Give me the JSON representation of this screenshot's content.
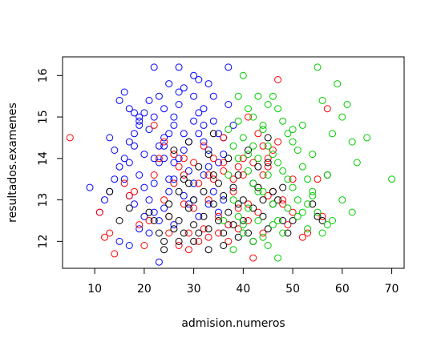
{
  "chart_data": {
    "type": "scatter",
    "title": "",
    "xlabel": "admision.numeros",
    "ylabel": "resultados.examenes",
    "xlim": [
      3.5,
      72.5
    ],
    "ylim": [
      11.35,
      16.45
    ],
    "xticks": [
      10,
      20,
      30,
      40,
      50,
      60,
      70
    ],
    "yticks": [
      12,
      13,
      14,
      15,
      16
    ],
    "grid": false,
    "legend": "none",
    "series": [
      {
        "color": "#0000FF",
        "points": [
          [
            15,
            15.4
          ],
          [
            16,
            15.6
          ],
          [
            17,
            15.2
          ],
          [
            19,
            15.0
          ],
          [
            22,
            16.2
          ],
          [
            27,
            16.2
          ],
          [
            30,
            16.0
          ],
          [
            31,
            15.9
          ],
          [
            33,
            15.8
          ],
          [
            37,
            16.2
          ],
          [
            25,
            15.8
          ],
          [
            23,
            15.5
          ],
          [
            21,
            15.4
          ],
          [
            20,
            15.1
          ],
          [
            19,
            14.8
          ],
          [
            18,
            14.6
          ],
          [
            17,
            14.4
          ],
          [
            16,
            14.0
          ],
          [
            15,
            13.8
          ],
          [
            14,
            13.5
          ],
          [
            13,
            13.2
          ],
          [
            12,
            13.0
          ],
          [
            11,
            12.7
          ],
          [
            9,
            13.3
          ],
          [
            13,
            14.5
          ],
          [
            14,
            14.2
          ],
          [
            16,
            13.5
          ],
          [
            17,
            13.9
          ],
          [
            18,
            14.3
          ],
          [
            19,
            13.6
          ],
          [
            20,
            14.1
          ],
          [
            21,
            14.7
          ],
          [
            22,
            13.4
          ],
          [
            23,
            13.9
          ],
          [
            24,
            14.5
          ],
          [
            25,
            13.2
          ],
          [
            26,
            14.8
          ],
          [
            27,
            15.3
          ],
          [
            28,
            14.2
          ],
          [
            29,
            13.7
          ],
          [
            30,
            14.9
          ],
          [
            31,
            15.1
          ],
          [
            32,
            14.4
          ],
          [
            33,
            13.8
          ],
          [
            34,
            15.5
          ],
          [
            35,
            14.6
          ],
          [
            36,
            14.1
          ],
          [
            24,
            15.2
          ],
          [
            26,
            15.0
          ],
          [
            28,
            15.7
          ],
          [
            30,
            15.5
          ],
          [
            32,
            15.2
          ],
          [
            34,
            14.9
          ],
          [
            36,
            14.5
          ],
          [
            37,
            15.3
          ],
          [
            38,
            14.8
          ],
          [
            22,
            14.0
          ],
          [
            23,
            14.3
          ],
          [
            25,
            14.6
          ],
          [
            27,
            14.0
          ],
          [
            29,
            14.4
          ],
          [
            31,
            14.6
          ],
          [
            33,
            14.2
          ],
          [
            35,
            13.9
          ],
          [
            20,
            13.3
          ],
          [
            21,
            13.0
          ],
          [
            22,
            12.7
          ],
          [
            24,
            12.8
          ],
          [
            25,
            13.5
          ],
          [
            26,
            13.9
          ],
          [
            28,
            13.1
          ],
          [
            30,
            13.4
          ],
          [
            32,
            13.6
          ],
          [
            34,
            13.2
          ],
          [
            36,
            13.0
          ],
          [
            23,
            12.5
          ],
          [
            20,
            12.6
          ],
          [
            18,
            12.9
          ],
          [
            17,
            13.1
          ],
          [
            19,
            12.3
          ],
          [
            23,
            11.5
          ],
          [
            15,
            12.0
          ],
          [
            17,
            11.9
          ],
          [
            21,
            12.2
          ],
          [
            26,
            12.4
          ],
          [
            29,
            12.9
          ],
          [
            31,
            12.6
          ],
          [
            33,
            12.9
          ],
          [
            35,
            12.7
          ],
          [
            37,
            12.4
          ],
          [
            19,
            14.9
          ],
          [
            24,
            14.0
          ],
          [
            28,
            14.6
          ],
          [
            32,
            14.8
          ],
          [
            27,
            15.6
          ],
          [
            22,
            15.0
          ],
          [
            24,
            14.3
          ],
          [
            26,
            13.5
          ],
          [
            30,
            13.0
          ],
          [
            18,
            15.1
          ]
        ]
      },
      {
        "color": "#FF0000",
        "points": [
          [
            5,
            14.5
          ],
          [
            11,
            12.7
          ],
          [
            12,
            12.1
          ],
          [
            13,
            12.2
          ],
          [
            14,
            11.7
          ],
          [
            16,
            13.4
          ],
          [
            17,
            13.1
          ],
          [
            18,
            13.2
          ],
          [
            19,
            12.4
          ],
          [
            20,
            11.9
          ],
          [
            21,
            12.5
          ],
          [
            22,
            13.6
          ],
          [
            23,
            14.0
          ],
          [
            24,
            13.0
          ],
          [
            25,
            12.6
          ],
          [
            26,
            13.4
          ],
          [
            27,
            13.8
          ],
          [
            28,
            12.9
          ],
          [
            29,
            12.2
          ],
          [
            30,
            12.8
          ],
          [
            31,
            13.4
          ],
          [
            32,
            12.3
          ],
          [
            33,
            13.0
          ],
          [
            34,
            13.5
          ],
          [
            35,
            12.6
          ],
          [
            36,
            13.9
          ],
          [
            37,
            12.4
          ],
          [
            38,
            13.2
          ],
          [
            39,
            12.8
          ],
          [
            40,
            13.6
          ],
          [
            41,
            12.9
          ],
          [
            42,
            11.6
          ],
          [
            43,
            13.3
          ],
          [
            44,
            12.2
          ],
          [
            45,
            13.8
          ],
          [
            46,
            14.2
          ],
          [
            47,
            15.9
          ],
          [
            48,
            13.0
          ],
          [
            49,
            12.4
          ],
          [
            50,
            13.5
          ],
          [
            52,
            12.1
          ],
          [
            53,
            12.2
          ],
          [
            55,
            13.5
          ],
          [
            56,
            12.6
          ],
          [
            57,
            15.2
          ],
          [
            41,
            15.0
          ],
          [
            43,
            14.6
          ],
          [
            45,
            14.0
          ],
          [
            47,
            14.4
          ],
          [
            22,
            14.8
          ],
          [
            24,
            14.4
          ],
          [
            26,
            14.1
          ],
          [
            28,
            13.6
          ],
          [
            30,
            13.9
          ],
          [
            32,
            14.3
          ],
          [
            34,
            14.0
          ],
          [
            36,
            13.7
          ],
          [
            38,
            13.5
          ],
          [
            40,
            14.0
          ],
          [
            42,
            13.9
          ],
          [
            44,
            13.6
          ],
          [
            46,
            13.2
          ],
          [
            48,
            12.9
          ],
          [
            50,
            12.7
          ],
          [
            25,
            12.2
          ],
          [
            27,
            11.9
          ],
          [
            29,
            11.8
          ],
          [
            31,
            12.0
          ],
          [
            33,
            12.1
          ],
          [
            35,
            12.2
          ],
          [
            37,
            12.0
          ],
          [
            39,
            12.3
          ],
          [
            41,
            12.5
          ],
          [
            43,
            12.7
          ],
          [
            45,
            13.1
          ],
          [
            28,
            14.0
          ],
          [
            33,
            13.6
          ],
          [
            36,
            14.5
          ],
          [
            39,
            13.8
          ],
          [
            44,
            14.3
          ]
        ]
      },
      {
        "color": "#000000",
        "points": [
          [
            13,
            13.2
          ],
          [
            15,
            12.5
          ],
          [
            17,
            12.8
          ],
          [
            21,
            12.7
          ],
          [
            22,
            12.5
          ],
          [
            23,
            12.2
          ],
          [
            24,
            12.0
          ],
          [
            25,
            12.6
          ],
          [
            26,
            12.3
          ],
          [
            27,
            12.5
          ],
          [
            28,
            12.2
          ],
          [
            29,
            12.8
          ],
          [
            30,
            12.4
          ],
          [
            31,
            12.2
          ],
          [
            32,
            12.6
          ],
          [
            33,
            12.3
          ],
          [
            34,
            12.9
          ],
          [
            35,
            12.5
          ],
          [
            36,
            12.2
          ],
          [
            37,
            12.7
          ],
          [
            38,
            12.4
          ],
          [
            39,
            12.9
          ],
          [
            40,
            12.5
          ],
          [
            41,
            12.2
          ],
          [
            42,
            12.8
          ],
          [
            43,
            13.3
          ],
          [
            44,
            12.6
          ],
          [
            45,
            13.9
          ],
          [
            46,
            13.2
          ],
          [
            47,
            13.0
          ],
          [
            48,
            12.5
          ],
          [
            49,
            12.2
          ],
          [
            50,
            12.5
          ],
          [
            54,
            12.9
          ],
          [
            55,
            12.6
          ],
          [
            56,
            12.5
          ],
          [
            57,
            13.6
          ],
          [
            31,
            13.8
          ],
          [
            33,
            14.1
          ],
          [
            35,
            13.4
          ],
          [
            37,
            14.0
          ],
          [
            39,
            13.6
          ],
          [
            41,
            14.2
          ],
          [
            43,
            13.8
          ],
          [
            45,
            14.5
          ],
          [
            28,
            13.5
          ],
          [
            30,
            13.0
          ],
          [
            32,
            13.2
          ],
          [
            34,
            13.6
          ],
          [
            36,
            13.1
          ],
          [
            25,
            12.9
          ],
          [
            27,
            13.2
          ],
          [
            29,
            13.4
          ],
          [
            38,
            13.3
          ],
          [
            40,
            13.0
          ],
          [
            42,
            13.4
          ],
          [
            44,
            13.0
          ],
          [
            46,
            12.9
          ],
          [
            48,
            13.3
          ],
          [
            24,
            11.8
          ],
          [
            27,
            12.0
          ],
          [
            30,
            12.0
          ],
          [
            33,
            11.8
          ],
          [
            36,
            11.9
          ],
          [
            39,
            12.1
          ],
          [
            42,
            12.0
          ],
          [
            45,
            12.3
          ],
          [
            26,
            14.2
          ],
          [
            29,
            14.4
          ],
          [
            34,
            14.6
          ]
        ]
      },
      {
        "color": "#00CC00",
        "points": [
          [
            36,
            12.5
          ],
          [
            37,
            13.6
          ],
          [
            38,
            14.3
          ],
          [
            39,
            15.5
          ],
          [
            40,
            16.0
          ],
          [
            41,
            15.2
          ],
          [
            42,
            15.0
          ],
          [
            43,
            15.5
          ],
          [
            44,
            14.7
          ],
          [
            45,
            15.3
          ],
          [
            46,
            15.5
          ],
          [
            47,
            15.2
          ],
          [
            48,
            14.9
          ],
          [
            49,
            14.6
          ],
          [
            50,
            14.4
          ],
          [
            51,
            14.2
          ],
          [
            52,
            13.8
          ],
          [
            53,
            13.5
          ],
          [
            54,
            13.2
          ],
          [
            55,
            16.2
          ],
          [
            56,
            15.4
          ],
          [
            57,
            13.6
          ],
          [
            58,
            14.6
          ],
          [
            59,
            15.8
          ],
          [
            60,
            15.0
          ],
          [
            61,
            15.3
          ],
          [
            62,
            14.4
          ],
          [
            63,
            13.9
          ],
          [
            65,
            14.5
          ],
          [
            70,
            13.5
          ],
          [
            38,
            13.0
          ],
          [
            39,
            12.6
          ],
          [
            40,
            12.2
          ],
          [
            41,
            12.8
          ],
          [
            42,
            13.4
          ],
          [
            43,
            14.0
          ],
          [
            44,
            14.8
          ],
          [
            45,
            13.6
          ],
          [
            46,
            12.9
          ],
          [
            47,
            12.5
          ],
          [
            48,
            12.2
          ],
          [
            49,
            12.8
          ],
          [
            50,
            13.3
          ],
          [
            51,
            13.0
          ],
          [
            52,
            12.7
          ],
          [
            53,
            12.3
          ],
          [
            54,
            13.1
          ],
          [
            56,
            12.2
          ],
          [
            58,
            12.5
          ],
          [
            60,
            13.0
          ],
          [
            62,
            12.7
          ],
          [
            39,
            14.0
          ],
          [
            40,
            14.5
          ],
          [
            41,
            13.7
          ],
          [
            42,
            14.3
          ],
          [
            43,
            12.5
          ],
          [
            44,
            12.1
          ],
          [
            45,
            11.9
          ],
          [
            46,
            12.4
          ],
          [
            47,
            11.6
          ],
          [
            38,
            11.8
          ],
          [
            40,
            12.4
          ],
          [
            42,
            12.0
          ],
          [
            44,
            13.2
          ],
          [
            46,
            14.1
          ],
          [
            48,
            13.7
          ],
          [
            50,
            14.7
          ],
          [
            52,
            14.8
          ],
          [
            54,
            14.1
          ],
          [
            37,
            14.7
          ],
          [
            39,
            14.9
          ],
          [
            41,
            14.1
          ],
          [
            43,
            13.2
          ],
          [
            45,
            14.3
          ],
          [
            47,
            13.9
          ],
          [
            49,
            13.5
          ],
          [
            51,
            12.6
          ],
          [
            53,
            12.9
          ],
          [
            55,
            12.7
          ],
          [
            57,
            12.4
          ]
        ]
      }
    ]
  }
}
